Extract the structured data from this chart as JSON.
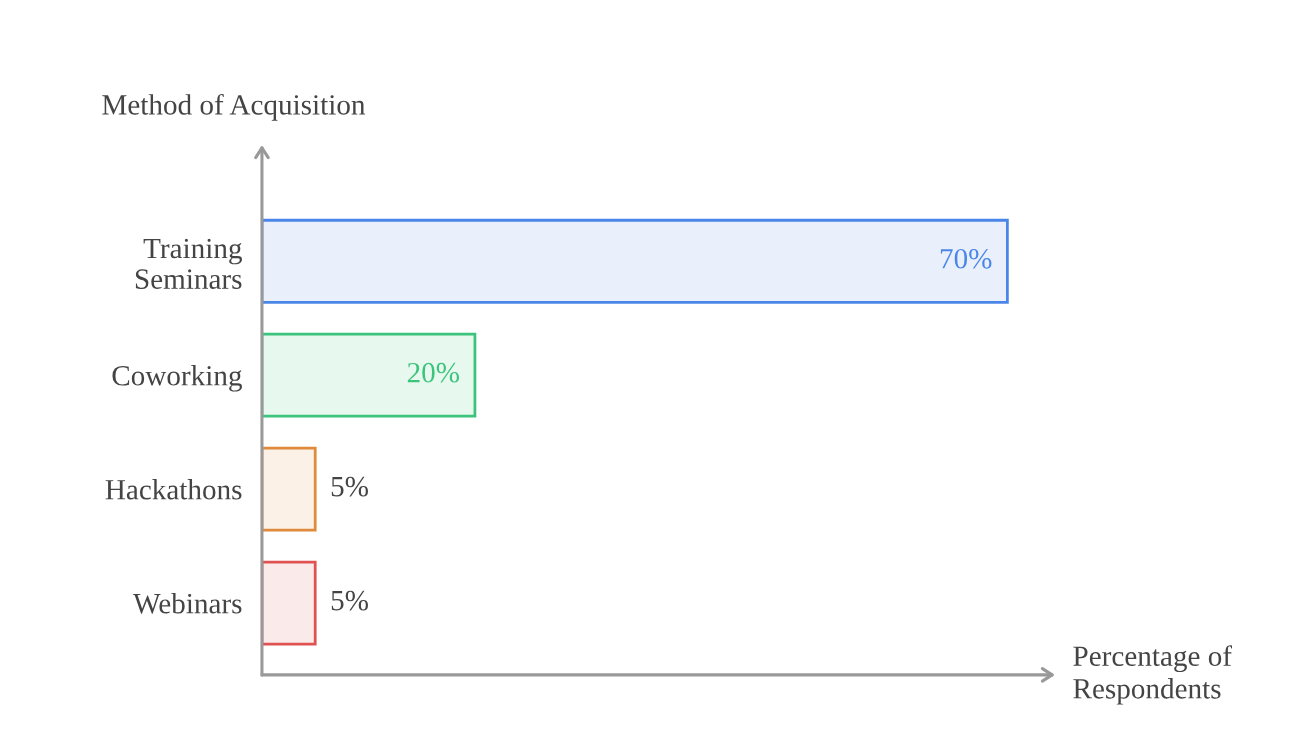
{
  "chart_data": {
    "type": "bar",
    "orientation": "horizontal",
    "ylabel": "Method of Acquisition",
    "xlabel": "Percentage of\nRespondents",
    "categories": [
      "Training\nSeminars",
      "Coworking",
      "Hackathons",
      "Webinars"
    ],
    "values": [
      70,
      20,
      5,
      5
    ],
    "colors": [
      "#4a86e8",
      "#3cc47c",
      "#e08a3c",
      "#e05252"
    ],
    "value_labels": [
      "70%",
      "20%",
      "5%",
      "5%"
    ],
    "grid": false,
    "legend": false
  }
}
